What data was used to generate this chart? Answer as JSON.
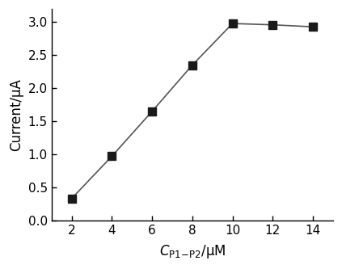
{
  "x": [
    2,
    4,
    6,
    8,
    10,
    12,
    14
  ],
  "y": [
    0.33,
    0.97,
    1.65,
    2.35,
    2.98,
    2.96,
    2.93
  ],
  "xlabel_text": "$C$",
  "xlabel_sub": "P1-P2",
  "xlabel_unit": "/μM",
  "ylabel": "Current/μA",
  "xlim": [
    1,
    15
  ],
  "ylim": [
    0.0,
    3.2
  ],
  "xticks": [
    2,
    4,
    6,
    8,
    10,
    12,
    14
  ],
  "yticks": [
    0.0,
    0.5,
    1.0,
    1.5,
    2.0,
    2.5,
    3.0
  ],
  "marker": "s",
  "marker_color": "#1a1a1a",
  "line_color": "#555555",
  "marker_size": 7,
  "line_width": 1.2,
  "bg_color": "#ffffff"
}
